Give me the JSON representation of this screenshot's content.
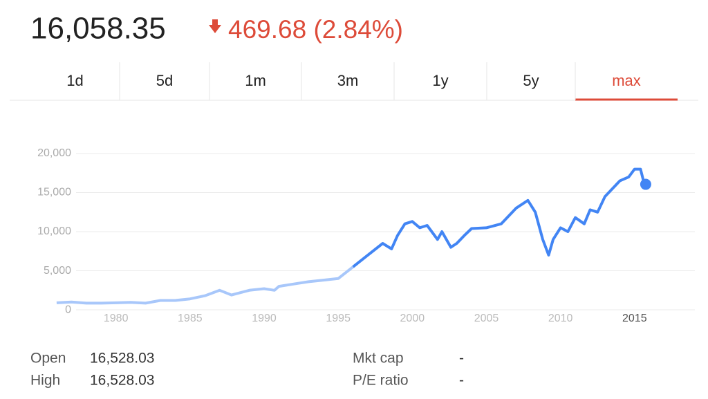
{
  "header": {
    "price": "16,058.35",
    "change": "469.68 (2.84%)"
  },
  "tabs": [
    "1d",
    "5d",
    "1m",
    "3m",
    "1y",
    "5y",
    "max"
  ],
  "active_tab": 6,
  "chart_data": {
    "type": "line",
    "series": [
      {
        "color": "#a8c7fa",
        "x": [
          1976,
          1977,
          1978,
          1979,
          1980,
          1981,
          1982,
          1983,
          1984,
          1985,
          1986,
          1987,
          1987.8,
          1988,
          1989,
          1990,
          1990.7,
          1991,
          1992,
          1993,
          1994,
          1995,
          1996
        ],
        "values": [
          900,
          1000,
          850,
          850,
          900,
          950,
          850,
          1200,
          1200,
          1400,
          1800,
          2500,
          1900,
          2000,
          2500,
          2700,
          2500,
          3000,
          3300,
          3600,
          3800,
          4000,
          5500
        ]
      },
      {
        "color": "#4285f4",
        "x": [
          1996,
          1997,
          1998,
          1998.6,
          1999,
          1999.5,
          2000,
          2000.5,
          2001,
          2001.7,
          2002,
          2002.6,
          2003,
          2003.5,
          2004,
          2005,
          2006,
          2007,
          2007.8,
          2008.3,
          2008.8,
          2009.2,
          2009.5,
          2010,
          2010.5,
          2011,
          2011.6,
          2012,
          2012.5,
          2013,
          2014,
          2014.6,
          2015,
          2015.4,
          2015.6,
          2015.75
        ],
        "values": [
          5500,
          7000,
          8500,
          7800,
          9500,
          11000,
          11300,
          10500,
          10800,
          9000,
          10000,
          8000,
          8500,
          9500,
          10400,
          10500,
          11000,
          13000,
          14000,
          12500,
          9000,
          7000,
          9000,
          10500,
          10000,
          11800,
          11000,
          12800,
          12500,
          14500,
          16500,
          17000,
          18000,
          18000,
          16500,
          16058.35
        ]
      }
    ],
    "xlim": [
      1972.83,
      2019.3
    ],
    "xticks": [
      1980,
      1985,
      1990,
      1995,
      2000,
      2005,
      2010,
      2015
    ],
    "ylim": [
      -1500,
      20000
    ],
    "yticks": [
      0,
      {
        "value": 5000,
        "label": "5,000"
      },
      {
        "value": 10000,
        "label": "10,000"
      },
      {
        "value": 15000,
        "label": "15,000"
      },
      {
        "value": 20000,
        "label": "20,000"
      }
    ],
    "grid": true
  },
  "stats": {
    "left": [
      [
        "Open",
        "16,528.03"
      ],
      [
        "High",
        "16,528.03"
      ]
    ],
    "right": [
      [
        "Mkt cap",
        "-"
      ],
      [
        "P/E ratio",
        "-"
      ]
    ]
  }
}
